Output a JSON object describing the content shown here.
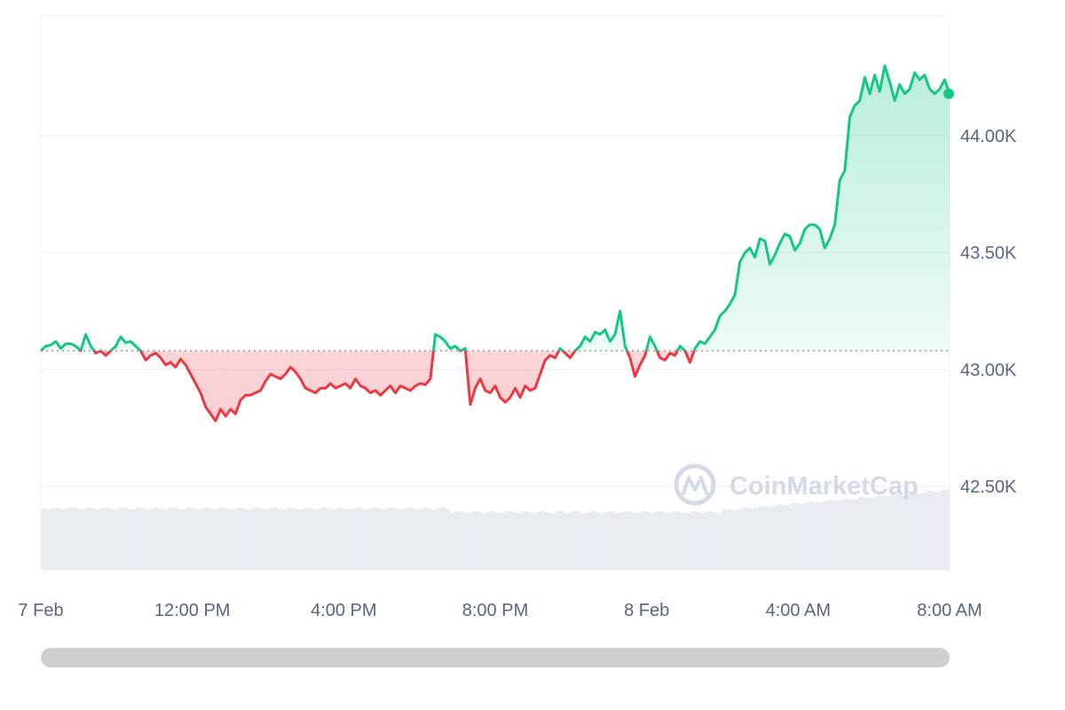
{
  "chart_data": {
    "type": "line",
    "title": "",
    "xlabel": "",
    "ylabel": "",
    "x_ticks": [
      "7 Feb",
      "12:00 PM",
      "4:00 PM",
      "8:00 PM",
      "8 Feb",
      "4:00 AM",
      "8:00 AM"
    ],
    "y_ticks": [
      "44.00K",
      "43.50K",
      "43.00K",
      "42.50K"
    ],
    "y_tick_values": [
      44000,
      43500,
      43000,
      42500
    ],
    "ylim": [
      42500,
      44500
    ],
    "baseline": 43080,
    "grid": "horizontal",
    "y_axis_side": "right",
    "colors": {
      "up": "#16c784",
      "down": "#ea3943",
      "volume": "#e8ecf1",
      "grid": "#eff2f5",
      "baseline": "#9aa1ad"
    },
    "series": [
      {
        "values": [
          43080,
          43100,
          43105,
          43120,
          43090,
          43110,
          43110,
          43100,
          43080,
          43150,
          43100,
          43070,
          43080,
          43060,
          43080,
          43100,
          43140,
          43115,
          43120,
          43100,
          43080,
          43040,
          43060,
          43070,
          43050,
          43020,
          43030,
          43010,
          43045,
          43020,
          42980,
          42940,
          42900,
          42840,
          42810,
          42780,
          42830,
          42800,
          42830,
          42810,
          42870,
          42890,
          42890,
          42900,
          42910,
          42950,
          42980,
          42970,
          42960,
          42980,
          43010,
          42990,
          42960,
          42920,
          42910,
          42900,
          42920,
          42920,
          42940,
          42920,
          42930,
          42940,
          42920,
          42960,
          42930,
          42920,
          42900,
          42910,
          42890,
          42910,
          42930,
          42900,
          42930,
          42920,
          42910,
          42930,
          42940,
          42935,
          42960,
          43150,
          43140,
          43120,
          43090,
          43100,
          43080,
          43090,
          42850,
          42920,
          42960,
          42910,
          42900,
          42930,
          42880,
          42860,
          42880,
          42920,
          42880,
          42930,
          42910,
          42920,
          42980,
          43040,
          43060,
          43050,
          43090,
          43070,
          43050,
          43080,
          43100,
          43140,
          43120,
          43160,
          43150,
          43170,
          43120,
          43150,
          43250,
          43100,
          43050,
          42970,
          43020,
          43060,
          43140,
          43100,
          43050,
          43040,
          43070,
          43060,
          43100,
          43080,
          43030,
          43090,
          43120,
          43110,
          43140,
          43170,
          43230,
          43250,
          43280,
          43320,
          43460,
          43500,
          43520,
          43480,
          43560,
          43550,
          43450,
          43490,
          43540,
          43580,
          43570,
          43510,
          43540,
          43600,
          43620,
          43620,
          43600,
          43520,
          43560,
          43620,
          43810,
          43850,
          44080,
          44130,
          44150,
          44250,
          44180,
          44260,
          44190,
          44300,
          44230,
          44150,
          44220,
          44180,
          44200,
          44270,
          44240,
          44260,
          44200,
          44180,
          44200,
          44240,
          44180
        ]
      }
    ]
  },
  "watermark": {
    "text": "CoinMarketCap",
    "icon": "coinmarketcap-logo-icon"
  },
  "scrollbar": {
    "color": "#cfcfcf"
  }
}
